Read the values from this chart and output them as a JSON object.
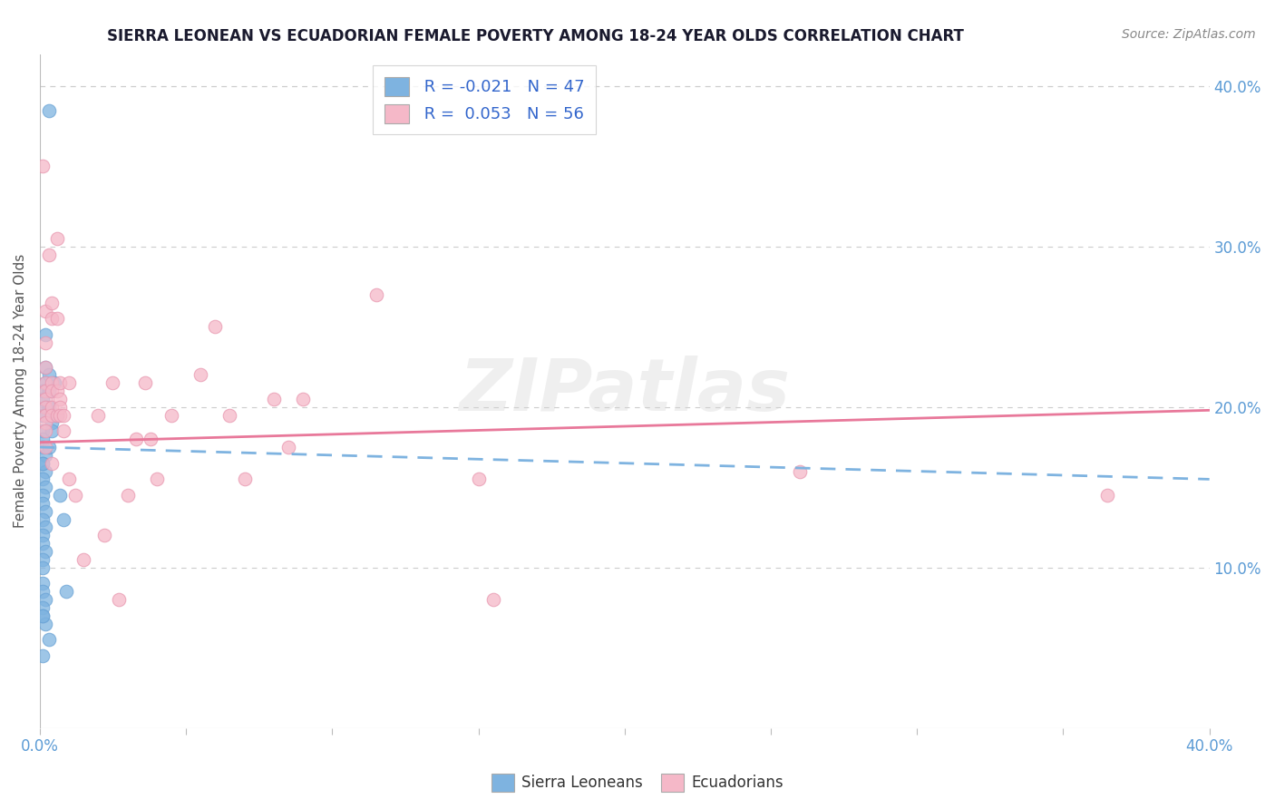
{
  "title": "SIERRA LEONEAN VS ECUADORIAN FEMALE POVERTY AMONG 18-24 YEAR OLDS CORRELATION CHART",
  "source": "Source: ZipAtlas.com",
  "ylabel": "Female Poverty Among 18-24 Year Olds",
  "xlim": [
    0.0,
    0.4
  ],
  "ylim": [
    0.0,
    0.42
  ],
  "xtick_vals": [
    0.0,
    0.05,
    0.1,
    0.15,
    0.2,
    0.25,
    0.3,
    0.35,
    0.4
  ],
  "xtick_labels": [
    "0.0%",
    "",
    "",
    "",
    "",
    "",
    "",
    "",
    "40.0%"
  ],
  "ytick_right_vals": [
    0.1,
    0.2,
    0.3,
    0.4
  ],
  "ytick_right_labels": [
    "10.0%",
    "20.0%",
    "30.0%",
    "40.0%"
  ],
  "color_sl": "#7eb3e0",
  "color_sl_edge": "#6aa3d5",
  "color_ec": "#f5b8c8",
  "color_ec_edge": "#e898b0",
  "color_sl_line": "#7eb3e0",
  "color_ec_line": "#e8789a",
  "watermark_text": "ZIPatlas",
  "legend_label1": " R = -0.021   N = 47",
  "legend_label2": " R =  0.053   N = 56",
  "bottom_label1": "Sierra Leoneans",
  "bottom_label2": "Ecuadorians",
  "sl_trend_x": [
    0.0,
    0.4
  ],
  "sl_trend_y": [
    0.175,
    0.155
  ],
  "ec_trend_x": [
    0.0,
    0.4
  ],
  "ec_trend_y": [
    0.178,
    0.198
  ],
  "sl_points": [
    [
      0.003,
      0.385
    ],
    [
      0.002,
      0.245
    ],
    [
      0.002,
      0.225
    ],
    [
      0.002,
      0.215
    ],
    [
      0.001,
      0.21
    ],
    [
      0.001,
      0.205
    ],
    [
      0.002,
      0.2
    ],
    [
      0.001,
      0.195
    ],
    [
      0.001,
      0.185
    ],
    [
      0.001,
      0.18
    ],
    [
      0.001,
      0.175
    ],
    [
      0.002,
      0.17
    ],
    [
      0.001,
      0.165
    ],
    [
      0.002,
      0.16
    ],
    [
      0.001,
      0.155
    ],
    [
      0.002,
      0.15
    ],
    [
      0.001,
      0.145
    ],
    [
      0.001,
      0.14
    ],
    [
      0.002,
      0.135
    ],
    [
      0.001,
      0.13
    ],
    [
      0.002,
      0.125
    ],
    [
      0.001,
      0.12
    ],
    [
      0.001,
      0.115
    ],
    [
      0.002,
      0.11
    ],
    [
      0.001,
      0.105
    ],
    [
      0.001,
      0.1
    ],
    [
      0.001,
      0.09
    ],
    [
      0.001,
      0.085
    ],
    [
      0.002,
      0.08
    ],
    [
      0.001,
      0.075
    ],
    [
      0.001,
      0.07
    ],
    [
      0.002,
      0.065
    ],
    [
      0.003,
      0.22
    ],
    [
      0.003,
      0.21
    ],
    [
      0.003,
      0.2
    ],
    [
      0.004,
      0.19
    ],
    [
      0.004,
      0.185
    ],
    [
      0.003,
      0.175
    ],
    [
      0.003,
      0.055
    ],
    [
      0.005,
      0.215
    ],
    [
      0.006,
      0.195
    ],
    [
      0.007,
      0.145
    ],
    [
      0.008,
      0.13
    ],
    [
      0.009,
      0.085
    ],
    [
      0.001,
      0.045
    ],
    [
      0.001,
      0.165
    ],
    [
      0.001,
      0.07
    ]
  ],
  "ec_points": [
    [
      0.001,
      0.35
    ],
    [
      0.002,
      0.26
    ],
    [
      0.002,
      0.24
    ],
    [
      0.002,
      0.225
    ],
    [
      0.002,
      0.215
    ],
    [
      0.002,
      0.21
    ],
    [
      0.002,
      0.205
    ],
    [
      0.002,
      0.2
    ],
    [
      0.002,
      0.195
    ],
    [
      0.002,
      0.19
    ],
    [
      0.002,
      0.185
    ],
    [
      0.002,
      0.175
    ],
    [
      0.003,
      0.295
    ],
    [
      0.004,
      0.265
    ],
    [
      0.004,
      0.255
    ],
    [
      0.004,
      0.215
    ],
    [
      0.004,
      0.21
    ],
    [
      0.004,
      0.2
    ],
    [
      0.004,
      0.195
    ],
    [
      0.004,
      0.165
    ],
    [
      0.006,
      0.305
    ],
    [
      0.006,
      0.255
    ],
    [
      0.006,
      0.21
    ],
    [
      0.006,
      0.195
    ],
    [
      0.007,
      0.215
    ],
    [
      0.007,
      0.205
    ],
    [
      0.007,
      0.2
    ],
    [
      0.007,
      0.195
    ],
    [
      0.008,
      0.195
    ],
    [
      0.008,
      0.185
    ],
    [
      0.01,
      0.215
    ],
    [
      0.01,
      0.155
    ],
    [
      0.012,
      0.145
    ],
    [
      0.015,
      0.105
    ],
    [
      0.02,
      0.195
    ],
    [
      0.022,
      0.12
    ],
    [
      0.025,
      0.215
    ],
    [
      0.027,
      0.08
    ],
    [
      0.03,
      0.145
    ],
    [
      0.033,
      0.18
    ],
    [
      0.036,
      0.215
    ],
    [
      0.038,
      0.18
    ],
    [
      0.04,
      0.155
    ],
    [
      0.045,
      0.195
    ],
    [
      0.055,
      0.22
    ],
    [
      0.06,
      0.25
    ],
    [
      0.065,
      0.195
    ],
    [
      0.07,
      0.155
    ],
    [
      0.08,
      0.205
    ],
    [
      0.085,
      0.175
    ],
    [
      0.09,
      0.205
    ],
    [
      0.115,
      0.27
    ],
    [
      0.15,
      0.155
    ],
    [
      0.155,
      0.08
    ],
    [
      0.26,
      0.16
    ],
    [
      0.365,
      0.145
    ]
  ]
}
